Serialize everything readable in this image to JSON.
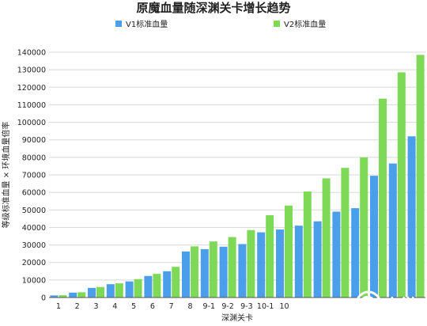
{
  "chart_data": {
    "type": "bar",
    "title": "原魔血量随深渊关卡增长趋势",
    "xlabel": "深渊关卡",
    "ylabel": "等级标准血量 × 环境血量倍率",
    "ylim": [
      0,
      140000
    ],
    "yticks": [
      0,
      10000,
      20000,
      30000,
      40000,
      50000,
      60000,
      70000,
      80000,
      90000,
      100000,
      110000,
      120000,
      130000,
      140000
    ],
    "grid": true,
    "legend_position": "top",
    "categories": [
      "1",
      "2",
      "3",
      "4",
      "5",
      "6",
      "7",
      "8",
      "9-1",
      "9-2",
      "9-3",
      "10-1",
      "10",
      "",
      "",
      "",
      "",
      "",
      "",
      ""
    ],
    "series": [
      {
        "name": "V1标准血量",
        "color": "#4a9eea",
        "values": [
          1200,
          2800,
          5500,
          7600,
          9200,
          12300,
          15000,
          26300,
          27600,
          29000,
          30500,
          37200,
          38800,
          41000,
          43500,
          49000,
          51000,
          69500,
          76500,
          92000
        ]
      },
      {
        "name": "V2标准血量",
        "color": "#7ed957",
        "values": [
          1300,
          3000,
          6000,
          8100,
          10500,
          13500,
          17500,
          29200,
          32000,
          34500,
          38500,
          47000,
          52500,
          60500,
          68000,
          74000,
          80000,
          113500,
          128500,
          138500
        ]
      }
    ]
  },
  "watermark": {
    "text": "九游"
  }
}
